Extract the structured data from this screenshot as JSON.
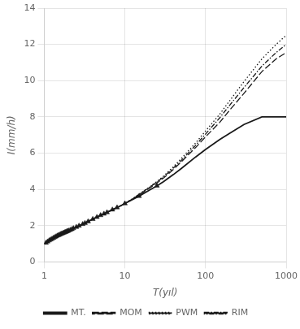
{
  "chart_data": {
    "type": "line",
    "ylabel": "I(mm/h)",
    "xlabel": "T(yıl)",
    "log": "x",
    "grid": true,
    "legend": "bottom",
    "xlim": [
      1,
      1000
    ],
    "xticks": [
      1,
      10,
      100,
      1000
    ],
    "ylim": [
      0,
      14
    ],
    "yticks": [
      0,
      2,
      4,
      6,
      8,
      10,
      12,
      14
    ],
    "x": [
      1.01,
      1.05,
      1.1,
      1.15,
      1.2,
      1.3,
      1.4,
      1.5,
      1.6,
      1.7,
      1.8,
      1.9,
      2.0,
      2.2,
      2.5,
      2.8,
      3.0,
      3.5,
      4.0,
      4.5,
      5.0,
      6.0,
      7.0,
      8.0,
      9.0,
      10,
      12,
      15,
      20,
      25,
      30,
      40,
      50,
      75,
      100,
      150,
      200,
      300,
      500,
      750,
      1000
    ],
    "series": [
      {
        "name": "MT.",
        "color": "#1a1a1a",
        "line_style": "solid",
        "values": [
          1.0,
          1.05,
          1.12,
          1.18,
          1.23,
          1.32,
          1.4,
          1.47,
          1.53,
          1.58,
          1.63,
          1.68,
          1.72,
          1.8,
          1.92,
          2.02,
          2.08,
          2.23,
          2.36,
          2.47,
          2.57,
          2.73,
          2.88,
          3.0,
          3.11,
          3.22,
          3.4,
          3.63,
          3.95,
          4.2,
          4.42,
          4.82,
          5.15,
          5.78,
          6.2,
          6.75,
          7.1,
          7.58,
          8.0,
          8.0,
          8.0
        ]
      },
      {
        "name": "MOM",
        "color": "#1a1a1a",
        "line_style": "dashed",
        "values": [
          1.0,
          1.05,
          1.12,
          1.18,
          1.23,
          1.32,
          1.4,
          1.47,
          1.53,
          1.58,
          1.63,
          1.68,
          1.72,
          1.8,
          1.92,
          2.02,
          2.08,
          2.23,
          2.36,
          2.47,
          2.57,
          2.73,
          2.88,
          3.0,
          3.11,
          3.22,
          3.42,
          3.7,
          4.05,
          4.35,
          4.62,
          5.1,
          5.52,
          6.3,
          6.9,
          7.7,
          8.38,
          9.3,
          10.5,
          11.2,
          11.55
        ]
      },
      {
        "name": "PWM",
        "color": "#1a1a1a",
        "line_style": "dotted",
        "values": [
          1.0,
          1.05,
          1.12,
          1.18,
          1.23,
          1.32,
          1.4,
          1.47,
          1.53,
          1.58,
          1.63,
          1.68,
          1.72,
          1.8,
          1.92,
          2.02,
          2.08,
          2.23,
          2.36,
          2.47,
          2.57,
          2.73,
          2.88,
          3.0,
          3.11,
          3.22,
          3.44,
          3.74,
          4.12,
          4.44,
          4.72,
          5.25,
          5.7,
          6.55,
          7.22,
          8.15,
          8.9,
          9.95,
          11.2,
          12.0,
          12.5
        ]
      },
      {
        "name": "RIM",
        "color": "#1a1a1a",
        "line_style": "dashdot",
        "values": [
          1.0,
          1.05,
          1.12,
          1.18,
          1.23,
          1.32,
          1.4,
          1.47,
          1.53,
          1.58,
          1.63,
          1.68,
          1.72,
          1.8,
          1.92,
          2.02,
          2.08,
          2.23,
          2.36,
          2.47,
          2.57,
          2.73,
          2.88,
          3.0,
          3.11,
          3.22,
          3.43,
          3.72,
          4.1,
          4.41,
          4.68,
          5.18,
          5.6,
          6.42,
          7.05,
          7.95,
          8.65,
          9.62,
          10.8,
          11.55,
          12.0
        ]
      },
      {
        "type": "scatter",
        "color": "#1a1a1a",
        "marker": "triangle",
        "x": [
          1.05,
          1.1,
          1.15,
          1.2,
          1.25,
          1.3,
          1.35,
          1.4,
          1.45,
          1.5,
          1.55,
          1.6,
          1.65,
          1.7,
          1.75,
          1.8,
          1.85,
          1.9,
          1.95,
          2.0,
          2.1,
          2.2,
          2.3,
          2.5,
          2.7,
          3.0,
          3.2,
          3.5,
          4.0,
          4.5,
          5.0,
          5.5,
          6.0,
          7.0,
          8.0,
          10.0,
          15.0,
          25.0
        ],
        "values": [
          1.05,
          1.12,
          1.18,
          1.23,
          1.27,
          1.32,
          1.36,
          1.4,
          1.44,
          1.47,
          1.5,
          1.53,
          1.56,
          1.58,
          1.61,
          1.63,
          1.65,
          1.68,
          1.7,
          1.72,
          1.76,
          1.8,
          1.85,
          1.92,
          1.99,
          2.08,
          2.14,
          2.23,
          2.36,
          2.47,
          2.57,
          2.65,
          2.73,
          2.88,
          3.0,
          3.22,
          3.63,
          4.2
        ]
      }
    ]
  }
}
